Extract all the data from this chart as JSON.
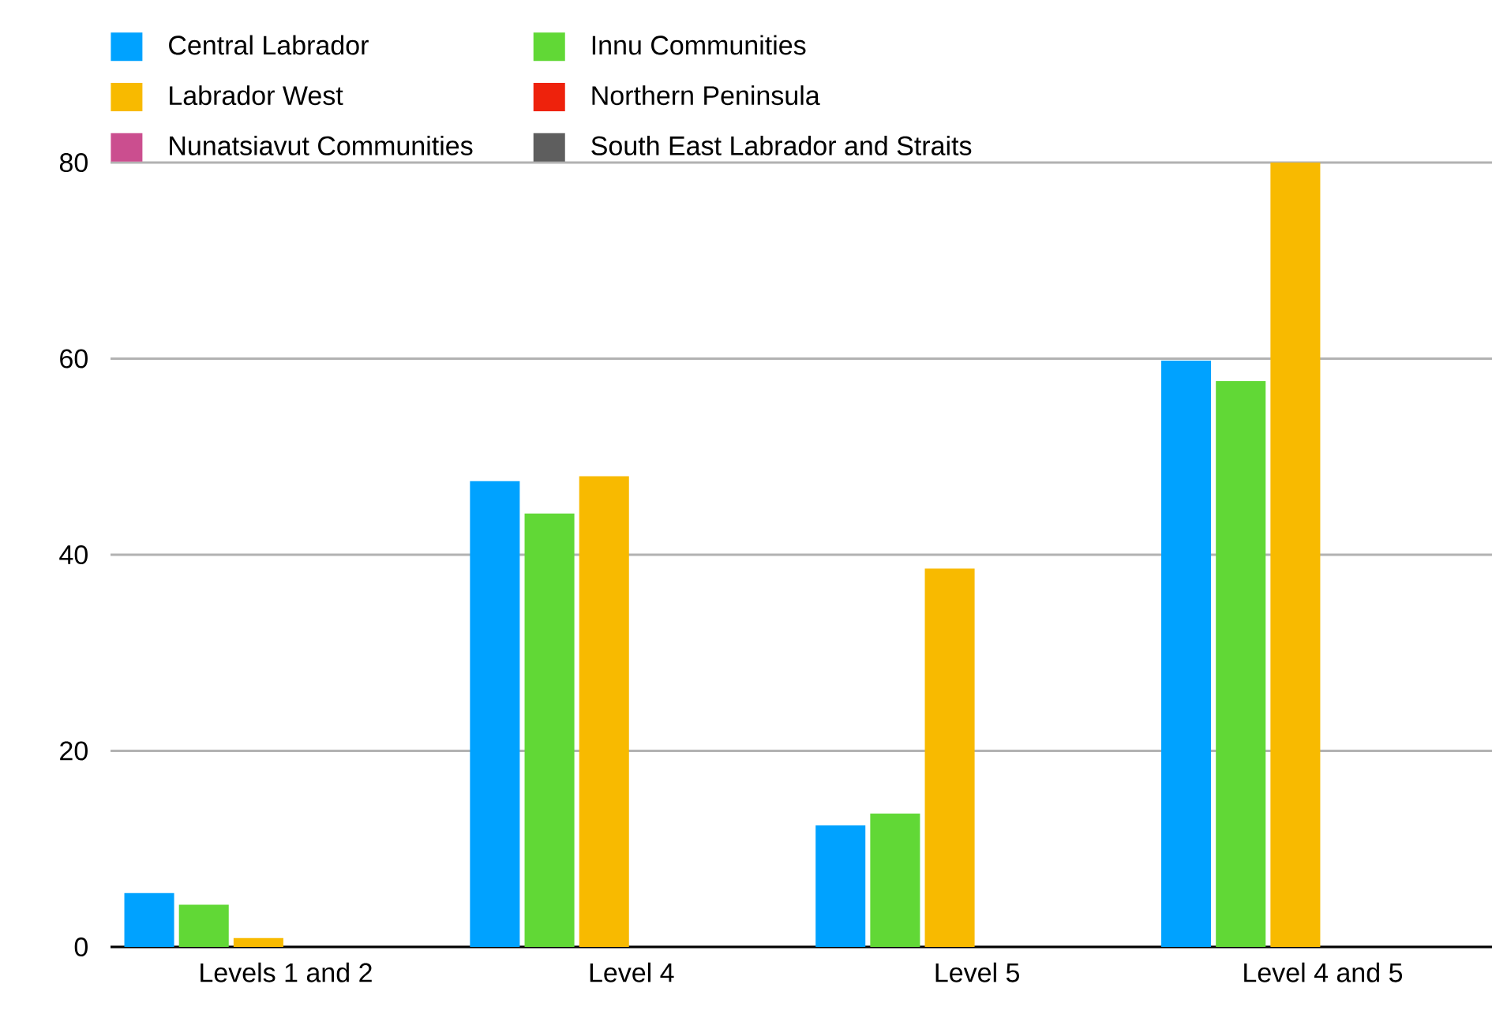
{
  "chart_data": {
    "type": "bar",
    "categories": [
      "Levels 1 and 2",
      "Level 4",
      "Level 5",
      "Level 4 and 5"
    ],
    "series": [
      {
        "name": "Central Labrador",
        "color": "#00a2ff",
        "values": [
          5.5,
          47.5,
          12.4,
          59.8
        ]
      },
      {
        "name": "Innu Communities",
        "color": "#61d836",
        "values": [
          4.3,
          44.2,
          13.6,
          57.7
        ]
      },
      {
        "name": "Labrador West",
        "color": "#f8ba00",
        "values": [
          0.9,
          48.0,
          38.6,
          80
        ]
      },
      {
        "name": "Northern Peninsula",
        "color": "#ee220c",
        "values": [
          0,
          0,
          0,
          0
        ]
      },
      {
        "name": "Nunatsiavut Communities",
        "color": "#cb4e8f",
        "values": [
          0,
          0,
          0,
          0
        ]
      },
      {
        "name": "South East Labrador and Straits",
        "color": "#5e5e5e",
        "values": [
          0,
          0,
          0,
          0
        ]
      }
    ],
    "ylim": [
      0,
      80
    ],
    "yticks": [
      0,
      20,
      40,
      60,
      80
    ],
    "grid": "y",
    "legend": "top"
  }
}
